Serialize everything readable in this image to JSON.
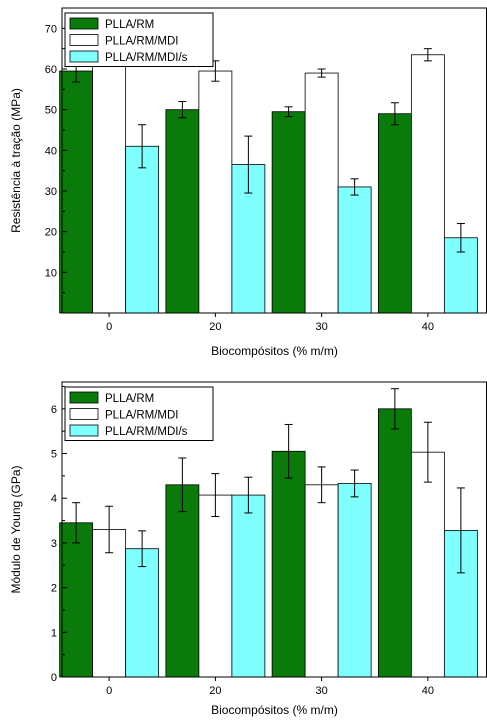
{
  "colors": {
    "PLLA/RM": "#0a7a0a",
    "PLLA/RM/MDI": "#ffffff",
    "PLLA/RM/MDI/s": "#80ffff"
  },
  "chart_data": [
    {
      "type": "bar",
      "title": "",
      "xlabel": "Biocompósitos (% m/m)",
      "ylabel": "Resistência à tração (MPa)",
      "ylim": [
        0,
        75
      ],
      "yticks": [
        10,
        20,
        30,
        40,
        50,
        60,
        70
      ],
      "categories": [
        "0",
        "20",
        "30",
        "40"
      ],
      "legend_position": "top-left",
      "series": [
        {
          "name": "PLLA/RM",
          "values": [
            59.5,
            50,
            49.5,
            49
          ],
          "errors": [
            2.7,
            2,
            1.2,
            2.7
          ]
        },
        {
          "name": "PLLA/RM/MDI",
          "values": [
            63,
            59.5,
            59,
            63.5
          ],
          "errors": [
            1,
            2.5,
            1,
            1.5
          ]
        },
        {
          "name": "PLLA/RM/MDI/s",
          "values": [
            41,
            36.5,
            31,
            18.5
          ],
          "errors": [
            5.3,
            7,
            2,
            3.5
          ]
        }
      ]
    },
    {
      "type": "bar",
      "title": "",
      "xlabel": "Biocompósitos (% m/m)",
      "ylabel": "Módulo de Young (GPa)",
      "ylim": [
        0,
        6.6
      ],
      "yticks": [
        0,
        1,
        2,
        3,
        4,
        5,
        6
      ],
      "categories": [
        "0",
        "20",
        "30",
        "40"
      ],
      "legend_position": "top-left",
      "series": [
        {
          "name": "PLLA/RM",
          "values": [
            3.45,
            4.3,
            5.05,
            6.0
          ],
          "errors": [
            0.45,
            0.6,
            0.6,
            0.45
          ]
        },
        {
          "name": "PLLA/RM/MDI",
          "values": [
            3.3,
            4.07,
            4.3,
            5.03
          ],
          "errors": [
            0.52,
            0.48,
            0.4,
            0.67
          ]
        },
        {
          "name": "PLLA/RM/MDI/s",
          "values": [
            2.87,
            4.07,
            4.33,
            3.28
          ],
          "errors": [
            0.4,
            0.4,
            0.3,
            0.95
          ]
        }
      ]
    }
  ]
}
